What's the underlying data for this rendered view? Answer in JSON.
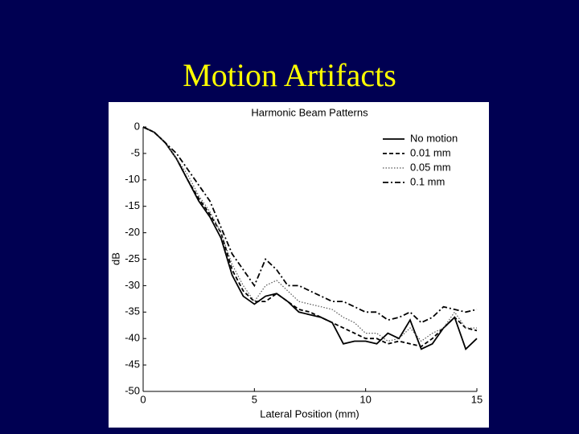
{
  "slide": {
    "title": "Motion Artifacts"
  },
  "chart_data": {
    "type": "line",
    "title": "Harmonic Beam Patterns",
    "x_label": "Lateral Position (mm)",
    "y_label": "dB",
    "x": [
      0,
      0.5,
      1,
      1.5,
      2,
      2.5,
      3,
      3.5,
      4,
      4.5,
      5,
      5.5,
      6,
      6.5,
      7,
      7.5,
      8,
      8.5,
      9,
      9.5,
      10,
      10.5,
      11,
      11.5,
      12,
      12.5,
      13,
      13.5,
      14,
      14.5,
      15
    ],
    "xlim": [
      0,
      15
    ],
    "xticks": [
      0,
      5,
      10,
      15
    ],
    "ylim": [
      -50,
      0
    ],
    "yticks": [
      0,
      -5,
      -10,
      -15,
      -20,
      -25,
      -30,
      -35,
      -40,
      -45,
      -50
    ],
    "legend": "upper right",
    "series": [
      {
        "name": "No motion",
        "color": "#000000",
        "style": "solid",
        "values": [
          0,
          -1,
          -3,
          -6,
          -10,
          -14,
          -17,
          -21,
          -28,
          -32,
          -33.5,
          -32,
          -31.5,
          -33,
          -35,
          -35.5,
          -36,
          -37,
          -41,
          -40.5,
          -40.5,
          -41,
          -39,
          -40,
          -36.5,
          -42,
          -41,
          -38,
          -36,
          -42,
          -40
        ]
      },
      {
        "name": "0.01 mm",
        "color": "#000000",
        "style": "dashed",
        "values": [
          0,
          -1,
          -3,
          -6,
          -10,
          -13.5,
          -16.5,
          -20,
          -27,
          -31,
          -33,
          -33,
          -31.5,
          -33,
          -34.5,
          -35,
          -36,
          -37,
          -38,
          -39,
          -40,
          -40,
          -41,
          -40.5,
          -41,
          -41.5,
          -40,
          -38,
          -36,
          -38,
          -38.5
        ]
      },
      {
        "name": "0.05 mm",
        "color": "#555555",
        "style": "dotted",
        "values": [
          0,
          -1,
          -3,
          -6,
          -9,
          -13,
          -16,
          -20,
          -26,
          -30,
          -33,
          -30,
          -29,
          -31,
          -33,
          -33.5,
          -34,
          -34.5,
          -36,
          -37,
          -39,
          -39,
          -40.5,
          -40,
          -38,
          -40.5,
          -39,
          -38,
          -35,
          -38,
          -38
        ]
      },
      {
        "name": "0.1 mm",
        "color": "#000000",
        "style": "dashdot",
        "values": [
          0,
          -1,
          -3,
          -5,
          -8,
          -11,
          -14,
          -19,
          -24,
          -27,
          -30,
          -25,
          -27,
          -30,
          -30,
          -31,
          -32,
          -33,
          -33,
          -34,
          -35,
          -35,
          -36.5,
          -36,
          -35,
          -37,
          -36,
          -34,
          -34.5,
          -35,
          -34.5
        ]
      }
    ]
  }
}
